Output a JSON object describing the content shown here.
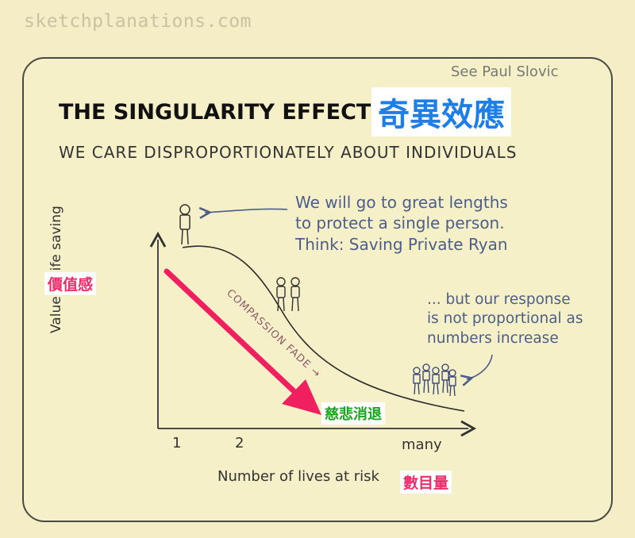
{
  "watermark": "sketchplanations.com",
  "credit": "See Paul Slovic",
  "title": {
    "en": "THE SINGULARITY EFFECT",
    "zh": "奇異效應"
  },
  "subtitle": "WE CARE DISPROPORTIONATELY ABOUT INDIVIDUALS",
  "notes": {
    "protect": [
      "We will go to great lengths",
      "to protect a single person.",
      "Think: Saving Private Ryan"
    ],
    "response": [
      "... but our response",
      "is not proportional as",
      "numbers increase"
    ]
  },
  "axes": {
    "y_label": "Value of life saving",
    "y_label_zh": "價值感",
    "x_label": "Number of lives at risk",
    "x_label_zh": "數目量",
    "x_ticks": [
      "1",
      "2",
      "many"
    ]
  },
  "arrow": {
    "label": "COMPASSION FADE →",
    "label_zh": "慈悲消退",
    "color": "#f01f5f"
  },
  "colors": {
    "note_blue": "#4b5e8a",
    "title_zh_blue": "#1d7ee8",
    "label_pink": "#ea2e6b",
    "label_green": "#16a51b",
    "background": "#f4edc6"
  },
  "icons": [
    "single-person-icon",
    "two-people-icon",
    "crowd-icon"
  ]
}
